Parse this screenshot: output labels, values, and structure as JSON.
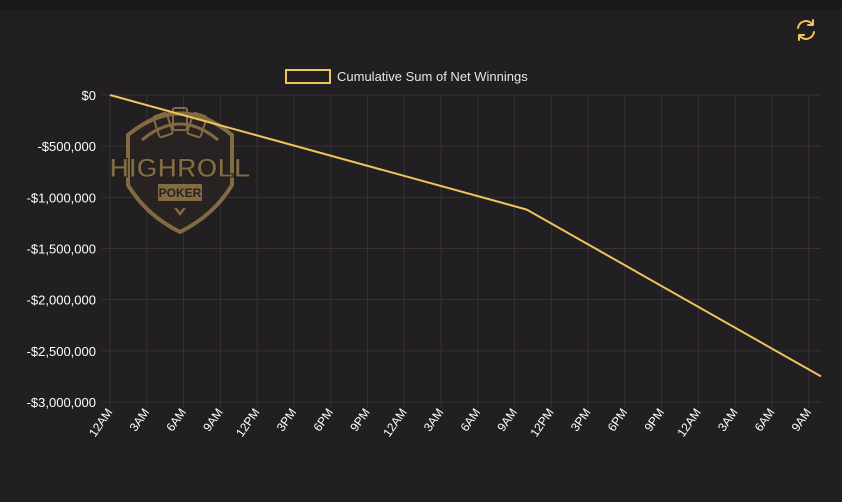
{
  "toolbar": {
    "refresh_icon": "refresh-icon"
  },
  "colors": {
    "background": "#221f22",
    "grid": "#363236",
    "line": "#f0c45c",
    "logo": "#9a7d4a"
  },
  "watermark": {
    "brand": "HIGHROLL",
    "sub": "POKER"
  },
  "chart_data": {
    "type": "line",
    "legend": {
      "label": "Cumulative Sum of Net Winnings",
      "placement": "top-center"
    },
    "x_tick_labels": [
      "12AM",
      "3AM",
      "6AM",
      "9AM",
      "12PM",
      "3PM",
      "6PM",
      "9PM",
      "12AM",
      "3AM",
      "6AM",
      "9AM",
      "12PM",
      "3PM",
      "6PM",
      "9PM",
      "12AM",
      "3AM",
      "6AM",
      "9AM"
    ],
    "y_tick_labels": [
      "$0",
      "-$500,000",
      "-$1,000,000",
      "-$1,500,000",
      "-$2,000,000",
      "-$2,500,000",
      "-$3,000,000"
    ],
    "y_tick_values": [
      0,
      -500000,
      -1000000,
      -1500000,
      -2000000,
      -2500000,
      -3000000
    ],
    "ylim": [
      -3000000,
      0
    ],
    "xlim_hours": [
      0,
      58
    ],
    "grid": true,
    "series": [
      {
        "name": "Cumulative Sum of Net Winnings",
        "x_hours": [
          0,
          34,
          58
        ],
        "values": [
          0,
          -1120000,
          -2750000
        ]
      }
    ]
  }
}
